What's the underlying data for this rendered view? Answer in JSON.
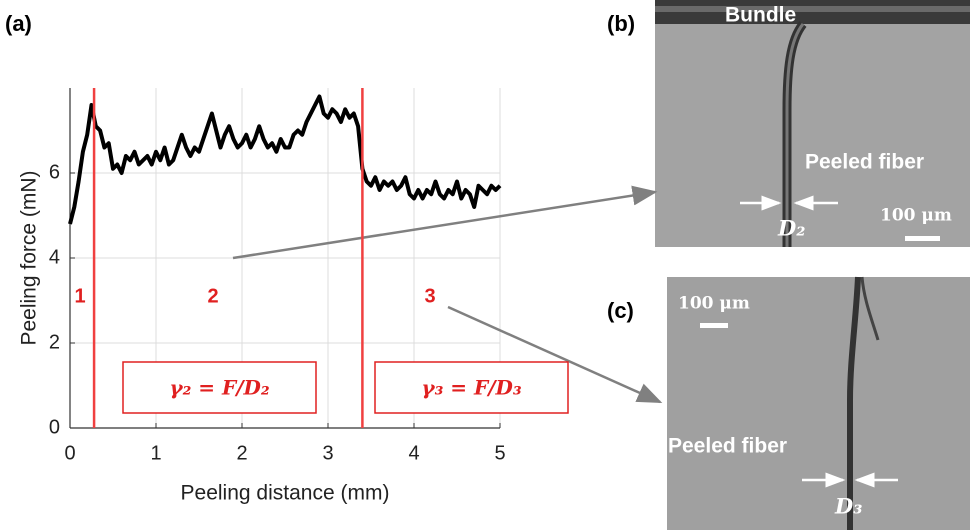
{
  "labels": {
    "a": "(a)",
    "b": "(b)",
    "c": "(c)"
  },
  "panel_b": {
    "bundle": "Bundle",
    "fiber": "Peeled fiber",
    "d": "D₂",
    "scale": "100 μm"
  },
  "panel_c": {
    "scale": "100 μm",
    "fiber": "Peeled fiber",
    "d": "D₃"
  },
  "chart_data": {
    "type": "line",
    "x_label": "Peeling distance (mm)",
    "y_label": "Peeling force (mN)",
    "xlim": [
      0,
      5
    ],
    "xticks": [
      0,
      1,
      2,
      3,
      4,
      5
    ],
    "ylim": [
      0,
      8
    ],
    "yticks": [
      0,
      2,
      4,
      6
    ],
    "grid": true,
    "vlines": [
      0.28,
      3.4
    ],
    "vline_color": "#f04040",
    "regions": [
      "1",
      "2",
      "3"
    ],
    "formulas": [
      "γ₂ = F/D₂",
      "γ₃ = F/D₃"
    ],
    "series": [
      {
        "color": "#000000",
        "x": [
          0,
          0.05,
          0.1,
          0.15,
          0.2,
          0.25,
          0.3,
          0.35,
          0.4,
          0.45,
          0.5,
          0.55,
          0.6,
          0.65,
          0.7,
          0.75,
          0.8,
          0.85,
          0.9,
          0.95,
          1,
          1.05,
          1.1,
          1.15,
          1.2,
          1.25,
          1.3,
          1.35,
          1.4,
          1.45,
          1.5,
          1.55,
          1.6,
          1.65,
          1.7,
          1.75,
          1.8,
          1.85,
          1.9,
          1.95,
          2,
          2.05,
          2.1,
          2.15,
          2.2,
          2.25,
          2.3,
          2.35,
          2.4,
          2.45,
          2.5,
          2.55,
          2.6,
          2.65,
          2.7,
          2.75,
          2.8,
          2.85,
          2.9,
          2.95,
          3,
          3.05,
          3.1,
          3.15,
          3.2,
          3.25,
          3.3,
          3.35,
          3.4,
          3.45,
          3.5,
          3.55,
          3.6,
          3.65,
          3.7,
          3.75,
          3.8,
          3.85,
          3.9,
          3.95,
          4,
          4.05,
          4.1,
          4.15,
          4.2,
          4.25,
          4.3,
          4.35,
          4.4,
          4.45,
          4.5,
          4.55,
          4.6,
          4.65,
          4.7,
          4.75,
          4.8,
          4.85,
          4.9,
          4.95,
          5
        ],
        "values": [
          4.8,
          5.2,
          5.8,
          6.5,
          6.9,
          7.6,
          7.1,
          7.0,
          6.6,
          6.7,
          6.1,
          6.2,
          6.0,
          6.4,
          6.3,
          6.5,
          6.2,
          6.3,
          6.4,
          6.2,
          6.5,
          6.3,
          6.6,
          6.2,
          6.3,
          6.6,
          6.9,
          6.6,
          6.4,
          6.6,
          6.5,
          6.8,
          7.1,
          7.4,
          7.0,
          6.6,
          6.9,
          7.1,
          6.8,
          6.6,
          6.7,
          6.9,
          6.6,
          6.8,
          7.1,
          6.8,
          6.6,
          6.7,
          6.5,
          6.8,
          6.6,
          6.6,
          6.9,
          7.0,
          6.9,
          7.2,
          7.4,
          7.6,
          7.8,
          7.4,
          7.3,
          7.5,
          7.4,
          7.2,
          7.5,
          7.3,
          7.4,
          7.1,
          6.1,
          5.8,
          5.7,
          5.9,
          5.6,
          5.8,
          5.7,
          5.8,
          5.6,
          5.7,
          5.9,
          5.5,
          5.4,
          5.6,
          5.4,
          5.6,
          5.5,
          5.8,
          5.5,
          5.4,
          5.6,
          5.5,
          5.8,
          5.4,
          5.6,
          5.5,
          5.2,
          5.7,
          5.6,
          5.5,
          5.7,
          5.6,
          5.7
        ]
      }
    ]
  }
}
